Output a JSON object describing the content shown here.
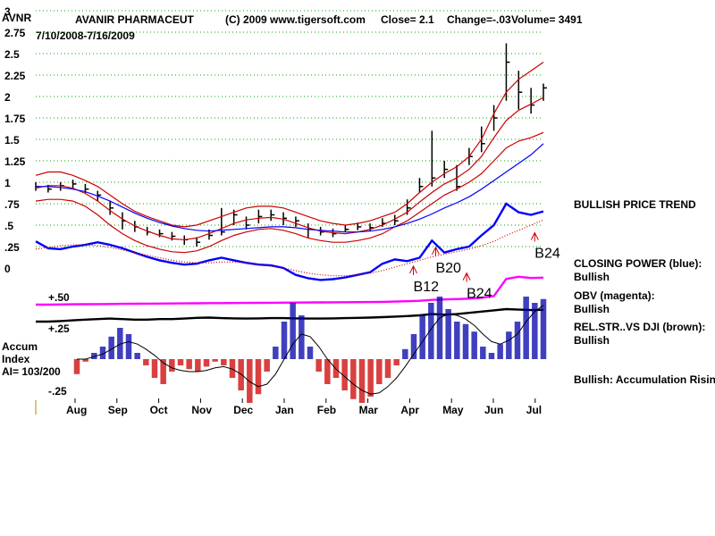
{
  "header": {
    "ticker": "AVNR",
    "company": "AVANIR PHARMACEUT",
    "copyright": "(C) 2009 www.tigersoft.com",
    "close": "Close=  2.1",
    "change": "Change=-.03",
    "volume": "Volume=  3491",
    "date_range": "7/10/2008-7/16/2009"
  },
  "chart_data": [
    {
      "type": "line",
      "panel": "price",
      "title": "",
      "y_ticks": [
        "3",
        "2.75",
        "2.5",
        "2.25",
        "2",
        "1.75",
        "1.5",
        "1.25",
        "1",
        ".75",
        ".5",
        ".25",
        "0"
      ],
      "y_tick_values": [
        3,
        2.75,
        2.5,
        2.25,
        2,
        1.75,
        1.5,
        1.25,
        1,
        0.75,
        0.5,
        0.25,
        0
      ],
      "ylim": [
        0,
        3
      ],
      "grid": true,
      "x_tick_labels": [
        "Aug",
        "Sep",
        "Oct",
        "Nov",
        "Dec",
        "Jan",
        "Feb",
        "Mar",
        "Apr",
        "May",
        "Jun",
        "Jul"
      ],
      "series": [
        {
          "color": "#000000",
          "style": "hlc-bars",
          "close": [
            0.95,
            0.92,
            0.96,
            0.98,
            0.92,
            0.85,
            0.7,
            0.55,
            0.48,
            0.42,
            0.4,
            0.37,
            0.33,
            0.3,
            0.38,
            0.42,
            0.62,
            0.5,
            0.6,
            0.62,
            0.58,
            0.55,
            0.45,
            0.42,
            0.4,
            0.45,
            0.48,
            0.47,
            0.52,
            0.55,
            0.7,
            0.95,
            1.05,
            1.15,
            0.95,
            1.3,
            1.45,
            1.75,
            2.4,
            2.05,
            1.9,
            2.1
          ],
          "high": [
            1.0,
            0.97,
            1.0,
            1.03,
            0.98,
            0.9,
            0.78,
            0.65,
            0.55,
            0.48,
            0.45,
            0.42,
            0.38,
            0.36,
            0.45,
            0.7,
            0.68,
            0.6,
            0.68,
            0.68,
            0.65,
            0.6,
            0.52,
            0.48,
            0.46,
            0.5,
            0.53,
            0.52,
            0.58,
            0.62,
            0.8,
            1.05,
            1.6,
            1.25,
            1.2,
            1.4,
            1.65,
            1.9,
            2.62,
            2.3,
            2.1,
            2.15
          ],
          "low": [
            0.9,
            0.88,
            0.9,
            0.93,
            0.87,
            0.78,
            0.62,
            0.45,
            0.42,
            0.38,
            0.36,
            0.32,
            0.27,
            0.25,
            0.33,
            0.38,
            0.5,
            0.45,
            0.52,
            0.55,
            0.5,
            0.48,
            0.35,
            0.38,
            0.36,
            0.42,
            0.44,
            0.43,
            0.48,
            0.5,
            0.62,
            0.88,
            0.95,
            1.05,
            0.9,
            1.2,
            1.35,
            1.6,
            1.95,
            1.85,
            1.8,
            1.95
          ]
        },
        {
          "color": "#cc0000",
          "style": "upper-band",
          "values": [
            1.08,
            1.12,
            1.12,
            1.08,
            1.02,
            0.95,
            0.85,
            0.75,
            0.66,
            0.6,
            0.55,
            0.5,
            0.48,
            0.5,
            0.55,
            0.6,
            0.65,
            0.7,
            0.72,
            0.72,
            0.7,
            0.65,
            0.6,
            0.55,
            0.52,
            0.5,
            0.52,
            0.55,
            0.6,
            0.65,
            0.75,
            0.88,
            1.0,
            1.1,
            1.18,
            1.3,
            1.5,
            1.8,
            2.05,
            2.2,
            2.3,
            2.4
          ]
        },
        {
          "color": "#cc0000",
          "style": "lower-band",
          "values": [
            0.78,
            0.8,
            0.8,
            0.78,
            0.72,
            0.62,
            0.5,
            0.4,
            0.32,
            0.26,
            0.22,
            0.19,
            0.18,
            0.2,
            0.25,
            0.32,
            0.38,
            0.42,
            0.45,
            0.46,
            0.44,
            0.4,
            0.35,
            0.32,
            0.3,
            0.3,
            0.32,
            0.35,
            0.4,
            0.48,
            0.55,
            0.65,
            0.75,
            0.85,
            0.92,
            1.0,
            1.1,
            1.25,
            1.4,
            1.48,
            1.52,
            1.58
          ]
        },
        {
          "color": "#cc0000",
          "style": "middle-avg",
          "values": [
            0.93,
            0.96,
            0.96,
            0.93,
            0.87,
            0.78,
            0.67,
            0.57,
            0.49,
            0.43,
            0.38,
            0.34,
            0.33,
            0.35,
            0.4,
            0.46,
            0.52,
            0.56,
            0.58,
            0.59,
            0.57,
            0.52,
            0.47,
            0.43,
            0.41,
            0.4,
            0.42,
            0.45,
            0.5,
            0.57,
            0.65,
            0.77,
            0.88,
            0.98,
            1.05,
            1.15,
            1.3,
            1.52,
            1.72,
            1.84,
            1.91,
            1.99
          ]
        },
        {
          "color": "#0000ff",
          "style": "long-avg",
          "values": [
            0.95,
            0.95,
            0.94,
            0.92,
            0.89,
            0.84,
            0.78,
            0.71,
            0.64,
            0.58,
            0.53,
            0.49,
            0.46,
            0.44,
            0.43,
            0.44,
            0.45,
            0.46,
            0.47,
            0.48,
            0.48,
            0.47,
            0.45,
            0.44,
            0.43,
            0.42,
            0.42,
            0.43,
            0.45,
            0.48,
            0.52,
            0.57,
            0.63,
            0.7,
            0.76,
            0.83,
            0.92,
            1.02,
            1.12,
            1.22,
            1.32,
            1.45
          ]
        }
      ]
    },
    {
      "type": "line",
      "panel": "closing-power",
      "series": [
        {
          "color": "#0000ff",
          "values": [
            0.31,
            0.23,
            0.22,
            0.25,
            0.27,
            0.3,
            0.27,
            0.23,
            0.18,
            0.13,
            0.09,
            0.06,
            0.04,
            0.05,
            0.09,
            0.12,
            0.09,
            0.06,
            0.04,
            0.03,
            0.0,
            -0.08,
            -0.12,
            -0.14,
            -0.13,
            -0.11,
            -0.08,
            -0.05,
            0.05,
            0.1,
            0.08,
            0.12,
            0.32,
            0.18,
            0.22,
            0.25,
            0.38,
            0.5,
            0.75,
            0.65,
            0.62,
            0.66
          ]
        },
        {
          "color": "#cc0000",
          "style": "dotted",
          "values": [
            0.22,
            0.24,
            0.26,
            0.27,
            0.27,
            0.26,
            0.24,
            0.21,
            0.18,
            0.15,
            0.12,
            0.09,
            0.07,
            0.06,
            0.06,
            0.07,
            0.07,
            0.06,
            0.04,
            0.02,
            0.0,
            -0.03,
            -0.06,
            -0.08,
            -0.09,
            -0.09,
            -0.08,
            -0.06,
            -0.03,
            0.01,
            0.05,
            0.09,
            0.13,
            0.16,
            0.19,
            0.22,
            0.26,
            0.31,
            0.38,
            0.44,
            0.5,
            0.56
          ]
        }
      ]
    },
    {
      "type": "line",
      "panel": "obv",
      "series": [
        {
          "color": "#ff00ff",
          "values": [
            0,
            0,
            0.005,
            0.008,
            0.01,
            0.012,
            0.015,
            0.018,
            0.02,
            0.022,
            0.025,
            0.028,
            0.03,
            0.032,
            0.035,
            0.036,
            0.038,
            0.04,
            0.042,
            0.044,
            0.046,
            0.048,
            0.05,
            0.052,
            0.054,
            0.056,
            0.058,
            0.06,
            0.065,
            0.07,
            0.08,
            0.09,
            0.11,
            0.12,
            0.13,
            0.14,
            0.16,
            0.2,
            0.6,
            0.65,
            0.62,
            0.63
          ]
        }
      ]
    },
    {
      "type": "line",
      "panel": "relative-strength-vs-dji",
      "series": [
        {
          "color": "#000000",
          "values": [
            0.5,
            0.5,
            0.52,
            0.55,
            0.58,
            0.6,
            0.62,
            0.6,
            0.58,
            0.58,
            0.6,
            0.6,
            0.62,
            0.65,
            0.66,
            0.64,
            0.63,
            0.62,
            0.63,
            0.64,
            0.64,
            0.63,
            0.62,
            0.62,
            0.63,
            0.64,
            0.65,
            0.66,
            0.68,
            0.7,
            0.72,
            0.75,
            0.8,
            0.78,
            0.8,
            0.85,
            0.9,
            0.95,
            1.0,
            0.98,
            0.96,
            0.97
          ]
        }
      ]
    },
    {
      "type": "bar",
      "panel": "accumulation-index",
      "title_lines": [
        "Accum",
        "Index",
        "AI= 103/200"
      ],
      "y_ticks": [
        "+.50",
        "+.25",
        "-.25"
      ],
      "y_tick_values": [
        0.5,
        0.25,
        -0.25
      ],
      "values": [
        -0.12,
        -0.02,
        0.05,
        0.1,
        0.18,
        0.25,
        0.2,
        0.05,
        -0.05,
        -0.15,
        -0.2,
        -0.1,
        -0.05,
        -0.08,
        -0.1,
        -0.06,
        -0.02,
        -0.05,
        -0.15,
        -0.25,
        -0.35,
        -0.28,
        -0.1,
        0.1,
        0.3,
        0.45,
        0.35,
        0.1,
        -0.1,
        -0.2,
        -0.15,
        -0.25,
        -0.32,
        -0.35,
        -0.3,
        -0.2,
        -0.15,
        -0.05,
        0.08,
        0.2,
        0.35,
        0.45,
        0.5,
        0.4,
        0.3,
        0.28,
        0.22,
        0.1,
        0.05,
        0.12,
        0.22,
        0.3,
        0.5,
        0.45,
        0.48
      ],
      "moving_average": [
        0.0,
        0.0,
        0.02,
        0.04,
        0.08,
        0.12,
        0.14,
        0.12,
        0.08,
        0.03,
        -0.03,
        -0.07,
        -0.09,
        -0.1,
        -0.1,
        -0.09,
        -0.07,
        -0.06,
        -0.08,
        -0.12,
        -0.18,
        -0.22,
        -0.2,
        -0.12,
        0.0,
        0.12,
        0.2,
        0.18,
        0.1,
        0.0,
        -0.08,
        -0.14,
        -0.2,
        -0.25,
        -0.28,
        -0.27,
        -0.22,
        -0.15,
        -0.06,
        0.04,
        0.14,
        0.24,
        0.33,
        0.36,
        0.35,
        0.32,
        0.27,
        0.2,
        0.14,
        0.12,
        0.15,
        0.2,
        0.3,
        0.38,
        0.43
      ]
    }
  ],
  "signals": [
    {
      "label": "B12",
      "panel": "closing-power",
      "x_index": 30.5,
      "y": -0.27
    },
    {
      "label": "B20",
      "panel": "closing-power",
      "x_index": 32.3,
      "y": -0.05
    },
    {
      "label": "B24",
      "panel": "closing-power",
      "x_index": 34.8,
      "y": -0.35
    },
    {
      "label": "B24",
      "panel": "closing-power",
      "x_index": 40.3,
      "y": 0.12
    }
  ],
  "annotations": {
    "price_trend": "BULLISH PRICE TREND",
    "closing_power_title": "CLOSING POWER (blue):",
    "closing_power_value": "Bullish",
    "obv_title": "OBV (magenta):",
    "obv_value": "Bullish",
    "relstr_title": "REL.STR..VS DJI (brown):",
    "relstr_value": "Bullish",
    "accum_note": "Bullish: Accumulation Rising"
  },
  "colors": {
    "price_bars": "#000000",
    "bands": "#cc0000",
    "long_avg": "#0000ff",
    "closing_power": "#0000ff",
    "obv": "#ff00ff",
    "relstr": "#000000",
    "accum_positive": "#0000aa",
    "accum_negative": "#cc0000",
    "grid": "#00aa00"
  }
}
